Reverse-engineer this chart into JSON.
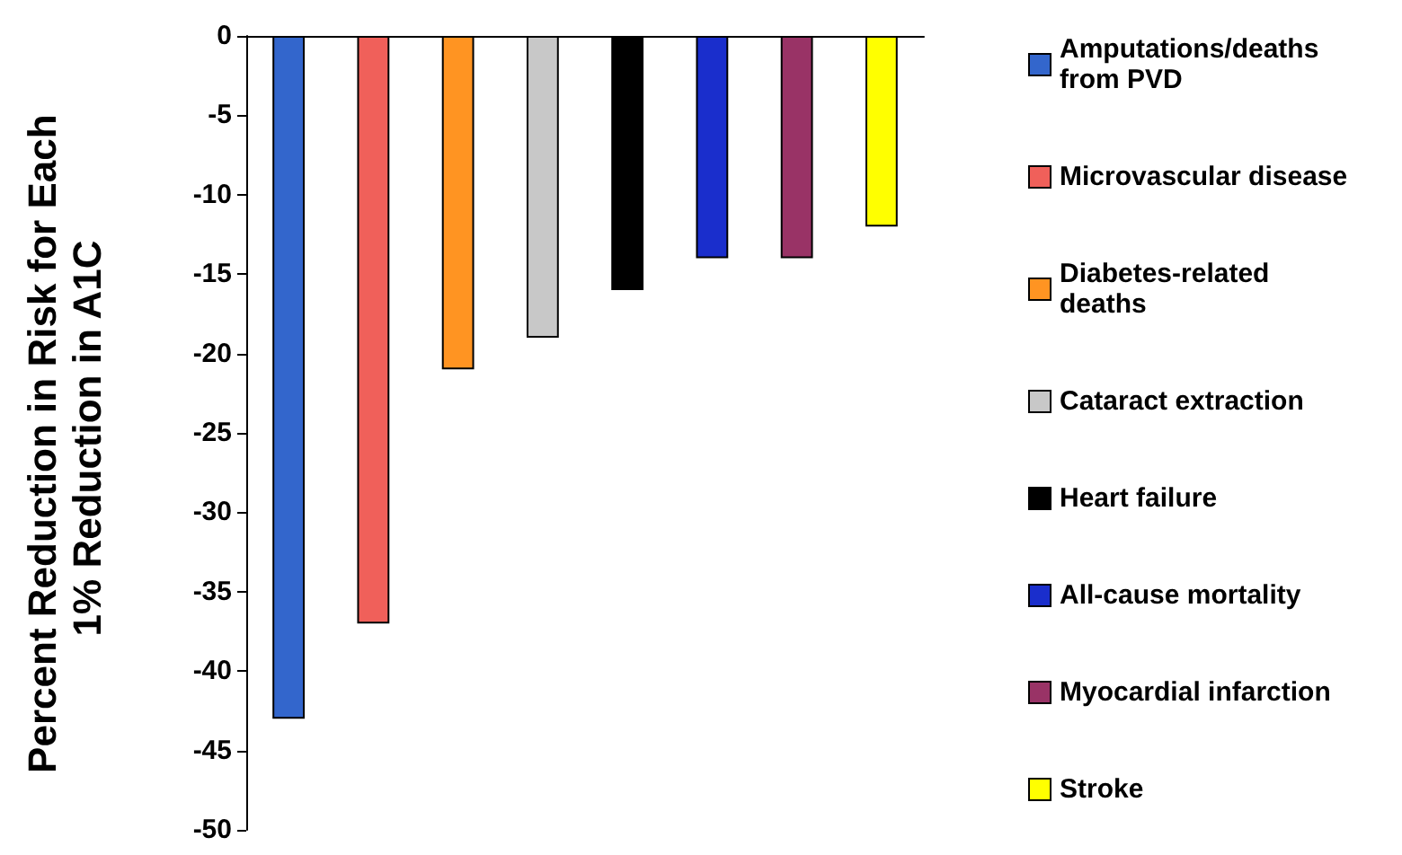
{
  "chart_data": {
    "type": "bar",
    "ylabel": "Percent Reduction in Risk for Each 1% Reduction in A1C",
    "categories": [
      null,
      null,
      null,
      null,
      null,
      null,
      null,
      null
    ],
    "series": [
      {
        "name": "Amputations/deaths from PVD",
        "color": "#3366cc",
        "values": [
          -43,
          null,
          null,
          null,
          null,
          null,
          null,
          null
        ]
      },
      {
        "name": "Microvascular disease",
        "color": "#f0605a",
        "values": [
          null,
          -37,
          null,
          null,
          null,
          null,
          null,
          null
        ]
      },
      {
        "name": "Diabetes-related deaths",
        "color": "#ff9422",
        "values": [
          null,
          null,
          -21,
          null,
          null,
          null,
          null,
          null
        ]
      },
      {
        "name": "Cataract extraction",
        "color": "#c8c8c8",
        "values": [
          null,
          null,
          null,
          -19,
          null,
          null,
          null,
          null
        ]
      },
      {
        "name": "Heart failure",
        "color": "#000000",
        "values": [
          null,
          null,
          null,
          null,
          -16,
          null,
          null,
          null
        ]
      },
      {
        "name": "All-cause mortality",
        "color": "#1a2ecc",
        "values": [
          null,
          null,
          null,
          null,
          null,
          -14,
          null,
          null
        ]
      },
      {
        "name": "Myocardial infarction",
        "color": "#993366",
        "values": [
          null,
          null,
          null,
          null,
          null,
          null,
          -14,
          null
        ]
      },
      {
        "name": "Stroke",
        "color": "#ffff00",
        "values": [
          null,
          null,
          null,
          null,
          null,
          null,
          null,
          -12
        ]
      }
    ],
    "ylim": [
      -50,
      0
    ],
    "yticks": [
      0,
      -5,
      -10,
      -15,
      -20,
      -25,
      -30,
      -35,
      -40,
      -45,
      -50
    ],
    "grid": false,
    "legend": "right"
  }
}
